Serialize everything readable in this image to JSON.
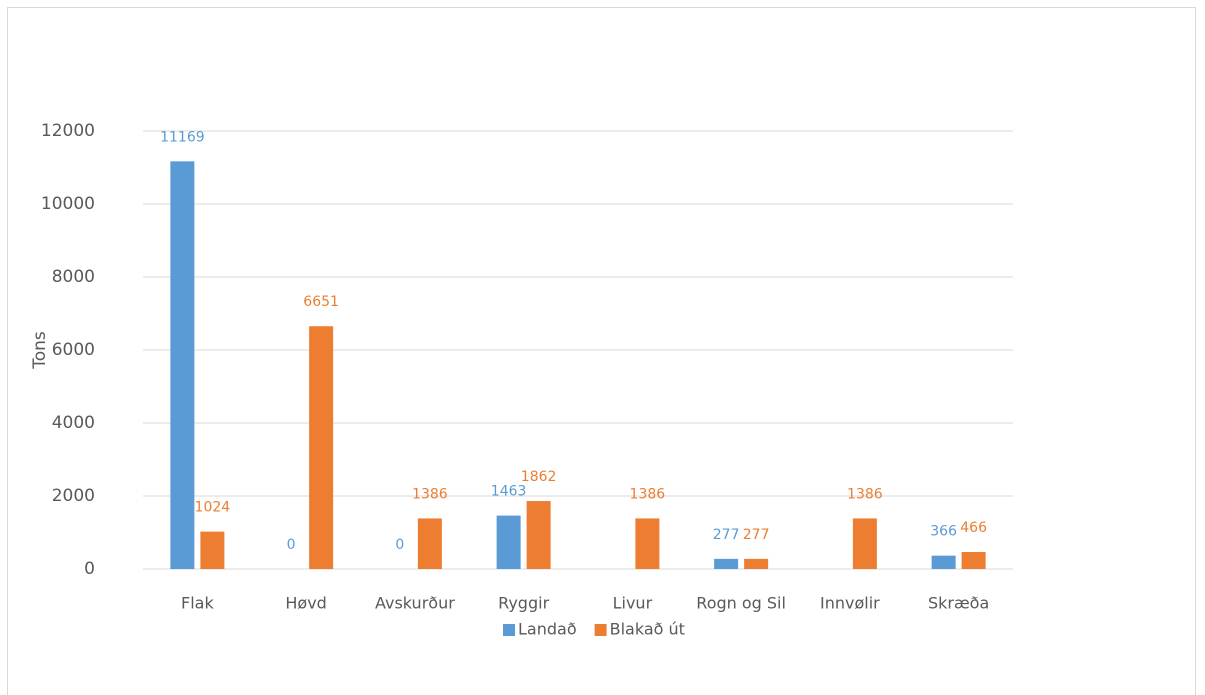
{
  "chart_data": {
    "type": "bar",
    "y_label": "Tons",
    "categories": [
      "Flak",
      "Høvd",
      "Avskurður",
      "Ryggir",
      "Livur",
      "Rogn og Sil",
      "Innvølir",
      "Skræða"
    ],
    "series": [
      {
        "name": "Landað",
        "color": "#5b9bd5",
        "values": [
          11169,
          0,
          0,
          1463,
          null,
          277,
          null,
          366
        ]
      },
      {
        "name": "Blakað út",
        "color": "#ed7d31",
        "values": [
          1024,
          6651,
          1386,
          1862,
          1386,
          277,
          1386,
          466
        ]
      }
    ],
    "ylim": [
      0,
      12000
    ],
    "yticks": [
      0,
      2000,
      4000,
      6000,
      8000,
      10000,
      12000
    ],
    "grid": true,
    "legend": "bottom"
  }
}
